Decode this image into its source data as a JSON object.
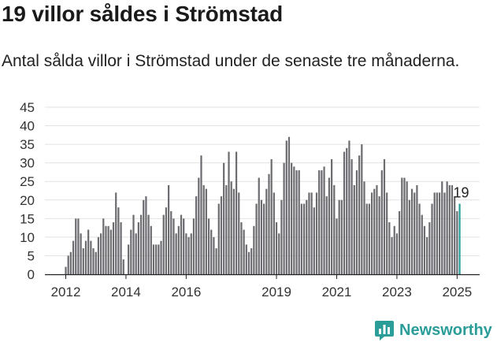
{
  "header": {
    "title": "19 villor såldes i Strömstad",
    "subtitle": "Antal sålda villor i Strömstad under de senaste tre månaderna."
  },
  "brand": {
    "name": "Newsworthy",
    "icon": "chart-speech-bubble-icon",
    "color": "#2a9d99"
  },
  "chart_data": {
    "type": "bar",
    "title": "",
    "xlabel": "",
    "ylabel": "",
    "ylim": [
      0,
      45
    ],
    "yticks": [
      "0",
      "5",
      "10",
      "15",
      "20",
      "25",
      "30",
      "35",
      "40",
      "45"
    ],
    "xticks": [
      "2012",
      "2014",
      "2016",
      "2019",
      "2021",
      "2023",
      "2025"
    ],
    "grid": true,
    "series": [
      {
        "start": "2012-01",
        "frequency": "monthly",
        "color": "#6b6b70",
        "highlight_color": "#2a9d99",
        "values": [
          2,
          5,
          6,
          9,
          15,
          15,
          11,
          7,
          9,
          12,
          9,
          7,
          6,
          10,
          11,
          15,
          13,
          13,
          12,
          14,
          22,
          18,
          14,
          4,
          0,
          8,
          12,
          16,
          11,
          14,
          16,
          20,
          21,
          16,
          13,
          8,
          8,
          8,
          9,
          16,
          18,
          24,
          17,
          15,
          11,
          13,
          16,
          15,
          11,
          10,
          11,
          15,
          21,
          26,
          32,
          24,
          23,
          15,
          12,
          10,
          7,
          19,
          21,
          30,
          24,
          33,
          25,
          23,
          33,
          22,
          14,
          12,
          8,
          6,
          7,
          13,
          19,
          26,
          20,
          19,
          23,
          27,
          31,
          22,
          14,
          11,
          20,
          30,
          36,
          37,
          30,
          29,
          28,
          28,
          19,
          19,
          20,
          22,
          22,
          18,
          22,
          28,
          28,
          29,
          21,
          26,
          31,
          24,
          15,
          20,
          20,
          33,
          34,
          36,
          31,
          24,
          28,
          32,
          35,
          25,
          19,
          19,
          22,
          23,
          24,
          21,
          28,
          31,
          22,
          14,
          10,
          13,
          11,
          17,
          26,
          26,
          25,
          20,
          23,
          22,
          24,
          19,
          16,
          13,
          10,
          14,
          19,
          22,
          22,
          22,
          25,
          22,
          25,
          24,
          24,
          21,
          17,
          19
        ],
        "labels": [
          {
            "index": 157,
            "text": "19"
          }
        ]
      }
    ]
  }
}
